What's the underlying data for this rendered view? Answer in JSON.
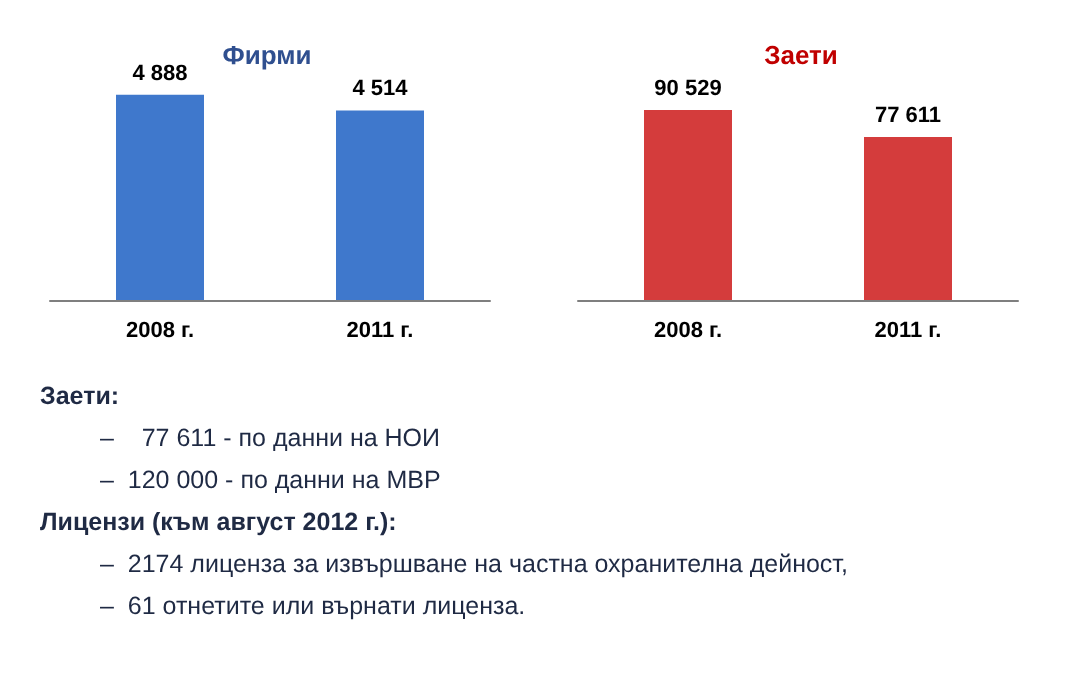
{
  "chart_data": [
    {
      "type": "bar",
      "title": "Фирми",
      "categories": [
        "2008 г.",
        "2011 г."
      ],
      "values": [
        4888,
        4514
      ],
      "value_labels": [
        "4 888",
        "4 514"
      ],
      "color": "#3f78cc",
      "tick_labels": "x",
      "grid": false
    },
    {
      "type": "bar",
      "title": "Заети",
      "categories": [
        "2008 г.",
        "2011 г."
      ],
      "values": [
        90529,
        77611
      ],
      "value_labels": [
        "90 529",
        "77 611"
      ],
      "color": "#d43c3c",
      "tick_labels": "x",
      "grid": false
    },
    {
      "type": "other",
      "annotations": [
        "Заети:",
        "–    77 611 - по данни на НОИ",
        "–  120 000 - по данни на МВР",
        "Лицензи (към август 2012 г.):",
        "–  2174 лиценза за извършване на частна охранителна дейност,",
        "–  61 отнетите или върнати лиценза."
      ]
    }
  ]
}
